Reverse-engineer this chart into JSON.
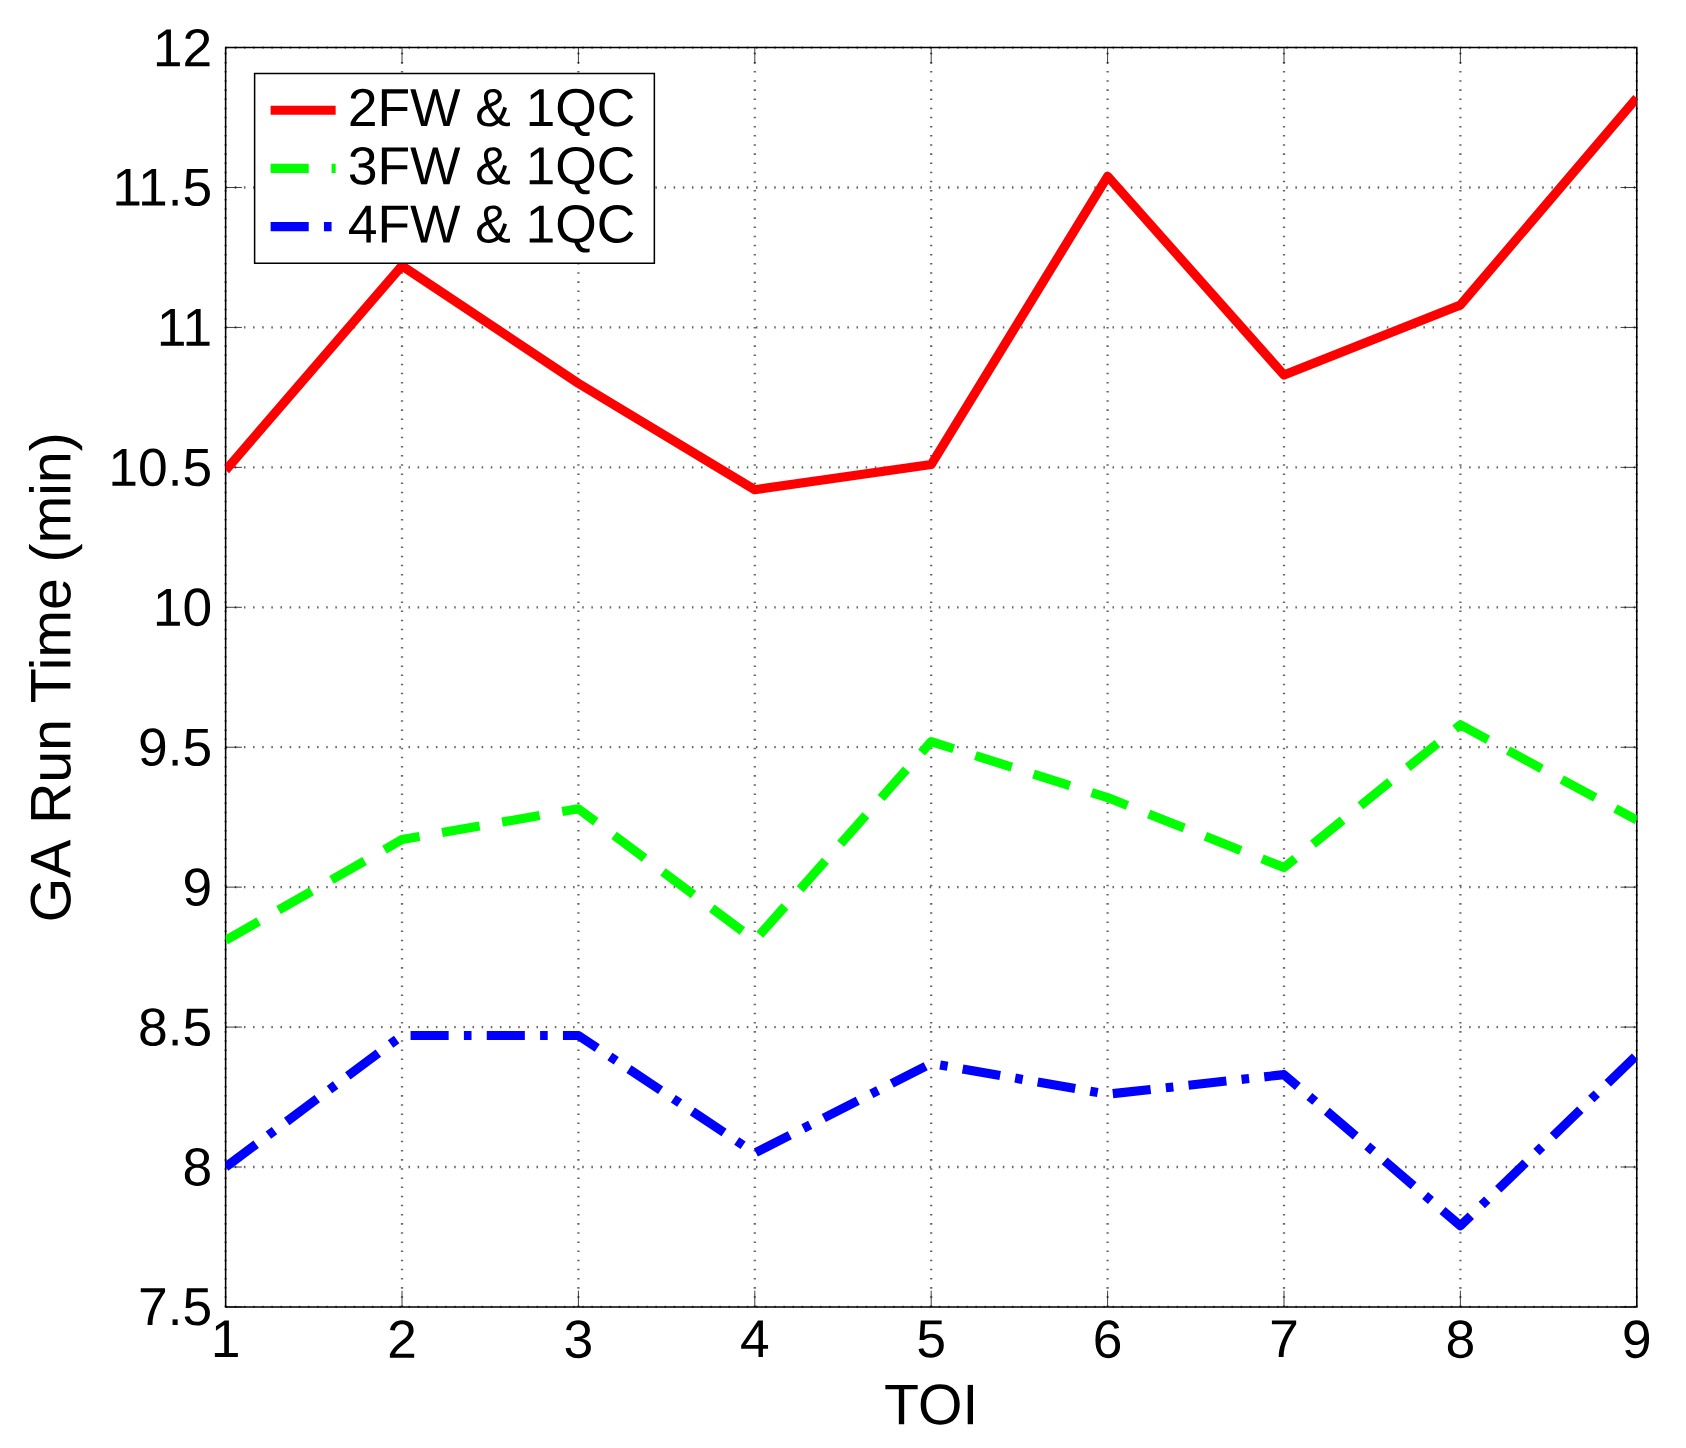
{
  "chart_data": {
    "type": "line",
    "xlabel": "TOI",
    "ylabel": "GA Run Time (min)",
    "x": [
      1,
      2,
      3,
      4,
      5,
      6,
      7,
      8,
      9
    ],
    "series": [
      {
        "name": "2FW & 1QC",
        "color": "#ff0000",
        "line_style": "solid",
        "values": [
          10.49,
          11.22,
          10.8,
          10.42,
          10.51,
          11.54,
          10.83,
          11.08,
          11.82
        ]
      },
      {
        "name": "3FW & 1QC",
        "color": "#00ff00",
        "line_style": "dashed",
        "values": [
          8.81,
          9.17,
          9.28,
          8.81,
          9.52,
          9.32,
          9.07,
          9.58,
          9.24
        ]
      },
      {
        "name": "4FW & 1QC",
        "color": "#0000ff",
        "line_style": "dashdot",
        "values": [
          8.0,
          8.47,
          8.47,
          8.05,
          8.37,
          8.26,
          8.33,
          7.79,
          8.4
        ]
      }
    ],
    "xlim": [
      1,
      9
    ],
    "xticks": [
      1,
      2,
      3,
      4,
      5,
      6,
      7,
      8,
      9
    ],
    "ylim": [
      7.5,
      12
    ],
    "yticks": [
      7.5,
      8,
      8.5,
      9,
      9.5,
      10,
      10.5,
      11,
      11.5,
      12
    ],
    "grid": true,
    "legend": "top left"
  }
}
